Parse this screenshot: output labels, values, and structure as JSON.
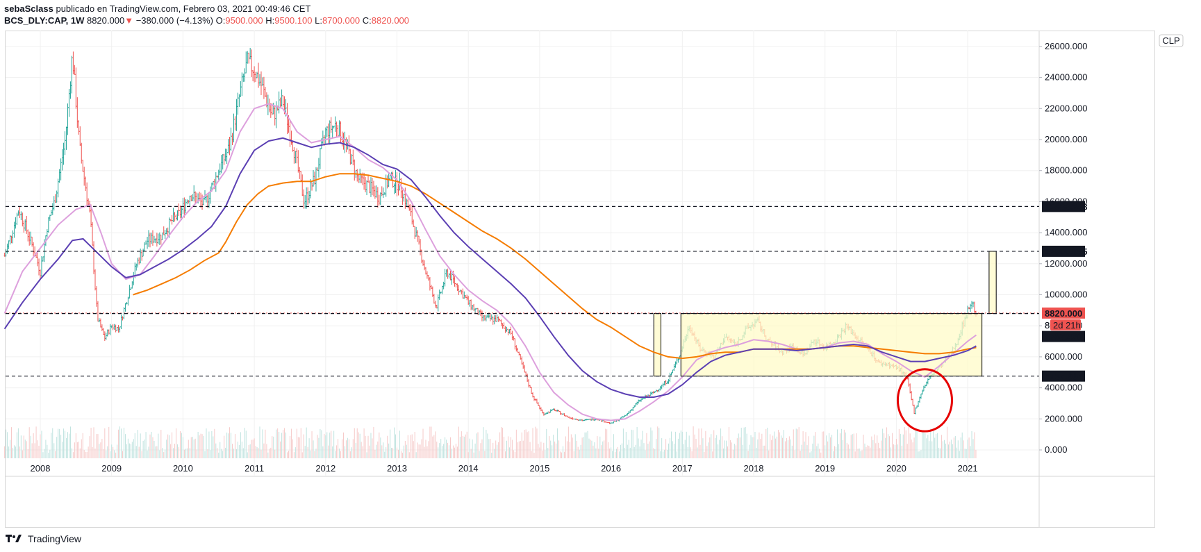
{
  "header": {
    "author": "sebaSclass",
    "published": "publicado en TradingView.com, Febrero 03, 2021 00:49:46 CET",
    "symbol": "BCS_DLY:CAP, 1W",
    "last": "8820.000",
    "change": "−380.000 (−4.13%)",
    "o_label": "O:",
    "o_value": "9500.000",
    "h_label": "H:",
    "h_value": "9500.100",
    "l_label": "L:",
    "l_value": "8700.000",
    "c_label": "C:",
    "c_value": "8820.000"
  },
  "footer": {
    "brand": "TradingView"
  },
  "currency_button": "CLP",
  "colors": {
    "up": "#26a69a",
    "down": "#ef5350",
    "ma_fast": "#dda0dd",
    "ma_mid": "#5b3fb3",
    "ma_slow": "#f57c00",
    "box_fill": "#fffbc8",
    "circle": "#e60000"
  },
  "chart_data": {
    "type": "candlestick",
    "interval": "1W",
    "x_ticks": [
      "2008",
      "2009",
      "2010",
      "2011",
      "2012",
      "2013",
      "2014",
      "2015",
      "2016",
      "2017",
      "2018",
      "2019",
      "2020",
      "2021"
    ],
    "y_ticks": [
      "26000.000",
      "24000.000",
      "22000.000",
      "20000.000",
      "18000.000",
      "16000.000",
      "14000.000",
      "12000.000",
      "10000.000",
      "8000.000",
      "6000.000",
      "4000.000",
      "2000.000",
      "0.000"
    ],
    "ylim": [
      -500,
      27000
    ],
    "price_levels": [
      {
        "value": 15688.248,
        "label": "15688.248",
        "style": "dark"
      },
      {
        "value": 12800.055,
        "label": "12800.055",
        "style": "dark"
      },
      {
        "value": 8820.0,
        "label": "8820.000",
        "style": "red"
      },
      {
        "value": 8787.426,
        "label": "8787.426",
        "style": "dark"
      },
      {
        "value": 4757.604,
        "label": "4757.604",
        "style": "dark"
      }
    ],
    "countdown_label": "2d 21h",
    "countdown_prefix": "8(",
    "price_path": [
      [
        2007.5,
        12500
      ],
      [
        2007.7,
        15500
      ],
      [
        2007.9,
        13000
      ],
      [
        2008.0,
        11500
      ],
      [
        2008.1,
        14500
      ],
      [
        2008.2,
        16000
      ],
      [
        2008.35,
        20000
      ],
      [
        2008.45,
        25500
      ],
      [
        2008.55,
        19500
      ],
      [
        2008.7,
        15000
      ],
      [
        2008.8,
        8500
      ],
      [
        2008.9,
        7200
      ],
      [
        2009.0,
        8000
      ],
      [
        2009.1,
        7800
      ],
      [
        2009.2,
        9500
      ],
      [
        2009.35,
        12000
      ],
      [
        2009.5,
        13500
      ],
      [
        2009.7,
        13800
      ],
      [
        2009.85,
        14800
      ],
      [
        2009.95,
        15200
      ],
      [
        2010.1,
        16500
      ],
      [
        2010.3,
        15800
      ],
      [
        2010.5,
        18000
      ],
      [
        2010.65,
        19500
      ],
      [
        2010.8,
        23000
      ],
      [
        2010.9,
        25000
      ],
      [
        2011.0,
        24500
      ],
      [
        2011.1,
        23500
      ],
      [
        2011.25,
        21500
      ],
      [
        2011.4,
        22500
      ],
      [
        2011.55,
        19500
      ],
      [
        2011.7,
        16000
      ],
      [
        2011.85,
        17500
      ],
      [
        2012.0,
        20500
      ],
      [
        2012.15,
        21000
      ],
      [
        2012.3,
        19500
      ],
      [
        2012.45,
        17500
      ],
      [
        2012.6,
        17000
      ],
      [
        2012.75,
        16300
      ],
      [
        2012.9,
        17500
      ],
      [
        2013.05,
        17000
      ],
      [
        2013.2,
        15000
      ],
      [
        2013.4,
        11500
      ],
      [
        2013.55,
        9200
      ],
      [
        2013.7,
        11500
      ],
      [
        2013.85,
        10500
      ],
      [
        2014.0,
        9500
      ],
      [
        2014.2,
        8500
      ],
      [
        2014.4,
        8400
      ],
      [
        2014.6,
        7500
      ],
      [
        2014.75,
        5500
      ],
      [
        2014.9,
        3500
      ],
      [
        2015.05,
        2300
      ],
      [
        2015.2,
        2600
      ],
      [
        2015.4,
        2100
      ],
      [
        2015.6,
        1900
      ],
      [
        2015.8,
        2000
      ],
      [
        2016.0,
        1700
      ],
      [
        2016.2,
        2200
      ],
      [
        2016.4,
        3200
      ],
      [
        2016.6,
        3700
      ],
      [
        2016.8,
        4500
      ],
      [
        2016.95,
        6000
      ],
      [
        2017.1,
        8000
      ],
      [
        2017.25,
        6500
      ],
      [
        2017.45,
        6000
      ],
      [
        2017.6,
        7300
      ],
      [
        2017.75,
        6800
      ],
      [
        2017.9,
        7800
      ],
      [
        2018.05,
        8300
      ],
      [
        2018.2,
        7000
      ],
      [
        2018.4,
        6300
      ],
      [
        2018.55,
        6700
      ],
      [
        2018.7,
        6100
      ],
      [
        2018.85,
        7100
      ],
      [
        2019.0,
        6600
      ],
      [
        2019.15,
        7100
      ],
      [
        2019.3,
        8000
      ],
      [
        2019.45,
        7200
      ],
      [
        2019.6,
        6600
      ],
      [
        2019.75,
        5600
      ],
      [
        2019.9,
        5500
      ],
      [
        2020.05,
        5200
      ],
      [
        2020.15,
        4600
      ],
      [
        2020.25,
        2400
      ],
      [
        2020.35,
        3700
      ],
      [
        2020.45,
        4600
      ],
      [
        2020.6,
        5300
      ],
      [
        2020.75,
        6100
      ],
      [
        2020.85,
        7000
      ],
      [
        2020.95,
        8300
      ],
      [
        2021.05,
        9600
      ],
      [
        2021.12,
        8820
      ]
    ],
    "ma_fast": [
      [
        2007.5,
        8800
      ],
      [
        2007.75,
        11500
      ],
      [
        2008.0,
        13000
      ],
      [
        2008.25,
        14500
      ],
      [
        2008.5,
        15500
      ],
      [
        2008.7,
        15800
      ],
      [
        2008.85,
        14000
      ],
      [
        2009.0,
        12000
      ],
      [
        2009.2,
        11000
      ],
      [
        2009.4,
        11300
      ],
      [
        2009.6,
        12500
      ],
      [
        2009.8,
        13800
      ],
      [
        2010.0,
        15000
      ],
      [
        2010.2,
        16000
      ],
      [
        2010.4,
        16700
      ],
      [
        2010.6,
        18000
      ],
      [
        2010.8,
        20500
      ],
      [
        2011.0,
        22000
      ],
      [
        2011.2,
        22300
      ],
      [
        2011.4,
        22000
      ],
      [
        2011.6,
        20500
      ],
      [
        2011.8,
        19800
      ],
      [
        2012.0,
        20000
      ],
      [
        2012.2,
        20200
      ],
      [
        2012.4,
        19500
      ],
      [
        2012.6,
        18700
      ],
      [
        2012.8,
        18200
      ],
      [
        2013.0,
        17400
      ],
      [
        2013.2,
        16000
      ],
      [
        2013.4,
        14200
      ],
      [
        2013.6,
        12500
      ],
      [
        2013.8,
        11300
      ],
      [
        2014.0,
        10300
      ],
      [
        2014.2,
        9600
      ],
      [
        2014.4,
        9000
      ],
      [
        2014.6,
        8100
      ],
      [
        2014.8,
        6700
      ],
      [
        2015.0,
        5000
      ],
      [
        2015.2,
        3700
      ],
      [
        2015.4,
        2900
      ],
      [
        2015.6,
        2300
      ],
      [
        2015.8,
        2000
      ],
      [
        2016.0,
        1900
      ],
      [
        2016.2,
        2000
      ],
      [
        2016.4,
        2500
      ],
      [
        2016.6,
        3100
      ],
      [
        2016.8,
        3800
      ],
      [
        2017.0,
        4700
      ],
      [
        2017.2,
        5800
      ],
      [
        2017.4,
        6300
      ],
      [
        2017.6,
        6600
      ],
      [
        2017.8,
        6800
      ],
      [
        2018.0,
        7100
      ],
      [
        2018.2,
        7000
      ],
      [
        2018.4,
        6800
      ],
      [
        2018.6,
        6500
      ],
      [
        2018.8,
        6500
      ],
      [
        2019.0,
        6600
      ],
      [
        2019.2,
        6900
      ],
      [
        2019.4,
        7000
      ],
      [
        2019.6,
        6800
      ],
      [
        2019.8,
        6200
      ],
      [
        2020.0,
        5700
      ],
      [
        2020.2,
        5100
      ],
      [
        2020.4,
        4700
      ],
      [
        2020.6,
        5400
      ],
      [
        2020.8,
        6200
      ],
      [
        2021.0,
        7000
      ],
      [
        2021.12,
        7400
      ]
    ],
    "ma_mid": [
      [
        2007.5,
        7800
      ],
      [
        2007.75,
        9500
      ],
      [
        2008.0,
        11000
      ],
      [
        2008.25,
        12300
      ],
      [
        2008.45,
        13500
      ],
      [
        2008.6,
        13600
      ],
      [
        2008.8,
        12700
      ],
      [
        2009.0,
        11800
      ],
      [
        2009.2,
        11100
      ],
      [
        2009.4,
        11300
      ],
      [
        2009.6,
        11800
      ],
      [
        2009.8,
        12300
      ],
      [
        2010.0,
        12900
      ],
      [
        2010.2,
        13600
      ],
      [
        2010.4,
        14400
      ],
      [
        2010.6,
        15700
      ],
      [
        2010.8,
        17800
      ],
      [
        2011.0,
        19300
      ],
      [
        2011.2,
        19900
      ],
      [
        2011.4,
        20100
      ],
      [
        2011.6,
        19800
      ],
      [
        2011.8,
        19500
      ],
      [
        2012.0,
        19700
      ],
      [
        2012.2,
        19800
      ],
      [
        2012.4,
        19500
      ],
      [
        2012.6,
        19000
      ],
      [
        2012.8,
        18400
      ],
      [
        2013.0,
        18100
      ],
      [
        2013.2,
        17400
      ],
      [
        2013.4,
        16300
      ],
      [
        2013.6,
        15100
      ],
      [
        2013.8,
        14000
      ],
      [
        2014.0,
        13100
      ],
      [
        2014.2,
        12300
      ],
      [
        2014.4,
        11500
      ],
      [
        2014.6,
        10700
      ],
      [
        2014.8,
        9800
      ],
      [
        2015.0,
        8600
      ],
      [
        2015.2,
        7300
      ],
      [
        2015.4,
        6100
      ],
      [
        2015.6,
        5100
      ],
      [
        2015.8,
        4400
      ],
      [
        2016.0,
        3900
      ],
      [
        2016.2,
        3600
      ],
      [
        2016.4,
        3400
      ],
      [
        2016.6,
        3400
      ],
      [
        2016.8,
        3600
      ],
      [
        2017.0,
        4200
      ],
      [
        2017.2,
        5000
      ],
      [
        2017.4,
        5700
      ],
      [
        2017.6,
        6100
      ],
      [
        2017.8,
        6300
      ],
      [
        2018.0,
        6500
      ],
      [
        2018.2,
        6500
      ],
      [
        2018.4,
        6500
      ],
      [
        2018.6,
        6400
      ],
      [
        2018.8,
        6500
      ],
      [
        2019.0,
        6600
      ],
      [
        2019.2,
        6700
      ],
      [
        2019.4,
        6800
      ],
      [
        2019.6,
        6700
      ],
      [
        2019.8,
        6300
      ],
      [
        2020.0,
        6000
      ],
      [
        2020.2,
        5700
      ],
      [
        2020.4,
        5700
      ],
      [
        2020.6,
        5900
      ],
      [
        2020.8,
        6100
      ],
      [
        2021.0,
        6400
      ],
      [
        2021.12,
        6700
      ]
    ],
    "ma_slow": [
      [
        2009.3,
        10000
      ],
      [
        2009.5,
        10300
      ],
      [
        2009.7,
        10700
      ],
      [
        2009.9,
        11100
      ],
      [
        2010.1,
        11600
      ],
      [
        2010.3,
        12200
      ],
      [
        2010.5,
        12700
      ],
      [
        2010.6,
        13400
      ],
      [
        2010.75,
        14700
      ],
      [
        2010.9,
        15800
      ],
      [
        2011.05,
        16500
      ],
      [
        2011.2,
        17000
      ],
      [
        2011.4,
        17200
      ],
      [
        2011.6,
        17300
      ],
      [
        2011.8,
        17300
      ],
      [
        2012.0,
        17600
      ],
      [
        2012.2,
        17800
      ],
      [
        2012.4,
        17800
      ],
      [
        2012.6,
        17700
      ],
      [
        2012.8,
        17500
      ],
      [
        2013.0,
        17300
      ],
      [
        2013.2,
        17000
      ],
      [
        2013.4,
        16500
      ],
      [
        2013.6,
        15900
      ],
      [
        2013.8,
        15300
      ],
      [
        2014.0,
        14700
      ],
      [
        2014.2,
        14100
      ],
      [
        2014.4,
        13600
      ],
      [
        2014.6,
        13000
      ],
      [
        2014.8,
        12300
      ],
      [
        2015.0,
        11500
      ],
      [
        2015.2,
        10700
      ],
      [
        2015.4,
        9900
      ],
      [
        2015.6,
        9100
      ],
      [
        2015.8,
        8400
      ],
      [
        2016.0,
        7900
      ],
      [
        2016.2,
        7300
      ],
      [
        2016.4,
        6700
      ],
      [
        2016.6,
        6300
      ],
      [
        2016.8,
        6000
      ],
      [
        2017.0,
        5900
      ],
      [
        2017.2,
        6000
      ],
      [
        2017.4,
        6200
      ],
      [
        2017.6,
        6300
      ],
      [
        2017.8,
        6300
      ],
      [
        2018.0,
        6500
      ],
      [
        2018.2,
        6500
      ],
      [
        2018.4,
        6500
      ],
      [
        2018.6,
        6500
      ],
      [
        2018.8,
        6500
      ],
      [
        2019.0,
        6600
      ],
      [
        2019.2,
        6700
      ],
      [
        2019.4,
        6700
      ],
      [
        2019.6,
        6600
      ],
      [
        2019.8,
        6500
      ],
      [
        2020.0,
        6400
      ],
      [
        2020.2,
        6300
      ],
      [
        2020.4,
        6200
      ],
      [
        2020.6,
        6200
      ],
      [
        2020.8,
        6300
      ],
      [
        2021.0,
        6500
      ],
      [
        2021.12,
        6600
      ]
    ],
    "annotations": [
      {
        "kind": "rectangle",
        "x1": 2016.6,
        "x2": 2016.7,
        "y1": 4757.604,
        "y2": 8787.426
      },
      {
        "kind": "rectangle",
        "x1": 2016.98,
        "x2": 2021.2,
        "y1": 4757.604,
        "y2": 8787.426
      },
      {
        "kind": "rectangle",
        "x1": 2021.3,
        "x2": 2021.4,
        "y1": 8787.426,
        "y2": 12800.055
      },
      {
        "kind": "circle",
        "cx": 2020.4,
        "cy": 3200,
        "rx": 0.38,
        "ry": 2000
      }
    ]
  }
}
